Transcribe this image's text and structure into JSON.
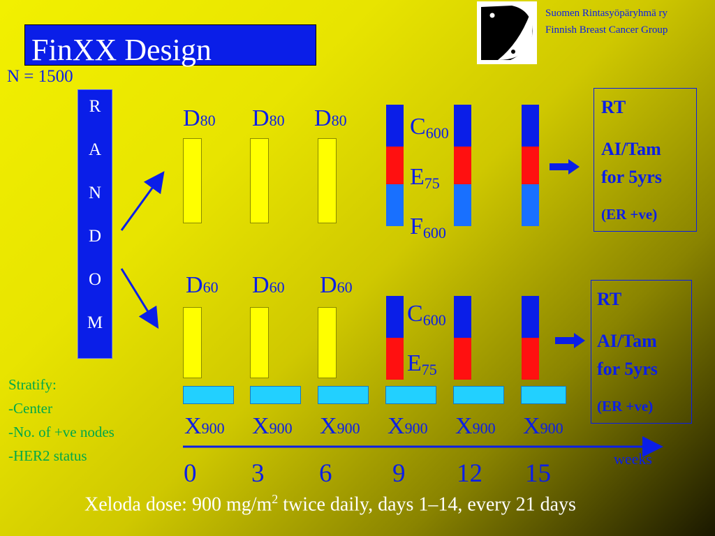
{
  "title": "FinXX Design",
  "org": {
    "line1": "Suomen Rintasyöpäryhmä ry",
    "line2": "Finnish Breast Cancer Group"
  },
  "n_label": "N = 1500",
  "random_letters": [
    "R",
    "A",
    "N",
    "D",
    "O",
    "M"
  ],
  "arm1": {
    "drugs": [
      {
        "name": "D",
        "dose": "80"
      },
      {
        "name": "D",
        "dose": "80"
      },
      {
        "name": "D",
        "dose": "80"
      }
    ],
    "regimen": [
      {
        "name": "C",
        "dose": "600"
      },
      {
        "name": "E",
        "dose": "75"
      },
      {
        "name": "F",
        "dose": "600"
      }
    ],
    "followup": {
      "line1": "RT",
      "line2": "AI/Tam",
      "line3": "for 5yrs",
      "line4": "(ER +ve)"
    }
  },
  "arm2": {
    "drugs": [
      {
        "name": "D",
        "dose": "60"
      },
      {
        "name": "D",
        "dose": "60"
      },
      {
        "name": "D",
        "dose": "60"
      }
    ],
    "regimen": [
      {
        "name": "C",
        "dose": "600"
      },
      {
        "name": "E",
        "dose": "75"
      }
    ],
    "xeloda": [
      {
        "name": "X",
        "dose": "900"
      },
      {
        "name": "X",
        "dose": "900"
      },
      {
        "name": "X",
        "dose": "900"
      },
      {
        "name": "X",
        "dose": "900"
      },
      {
        "name": "X",
        "dose": "900"
      },
      {
        "name": "X",
        "dose": "900"
      }
    ],
    "followup": {
      "line1": "RT",
      "line2": "AI/Tam",
      "line3": "for 5yrs",
      "line4": "(ER +ve)"
    }
  },
  "stratify": {
    "heading": "Stratify:",
    "items": [
      "-Center",
      "-No. of +ve nodes",
      "-HER2 status"
    ]
  },
  "timeline": {
    "weeks": [
      "0",
      "3",
      "6",
      "9",
      "12",
      "15"
    ],
    "unit_label": "weeks"
  },
  "footer": {
    "pre": "Xeloda dose: 900 mg/m",
    "sup": "2",
    "post": " twice daily, days 1–14, every 21 days"
  },
  "colors": {
    "brand_blue": "#0a1ee8",
    "docetaxel_bar": "#ffff00",
    "cyclophosphamide_segment": "#0a1ee8",
    "epirubicin_segment": "#ff1010",
    "fluorouracil_segment": "#1870ff",
    "xeloda_bar": "#22d0ff",
    "stratify_text": "#00a84a"
  }
}
